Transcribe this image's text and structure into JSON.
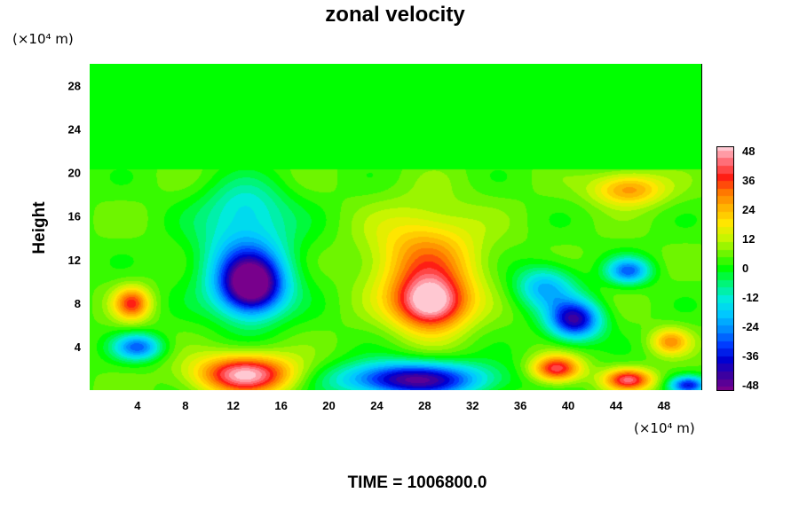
{
  "chart_data": {
    "type": "heatmap",
    "title": "zonal velocity",
    "ylabel": "Height",
    "xlabel": "",
    "y_unit_label": "(×10⁴ m)",
    "x_unit_label": "(×10⁴ m)",
    "xlim": [
      0,
      51.2
    ],
    "ylim": [
      0,
      30
    ],
    "x_ticks": [
      4,
      8,
      12,
      16,
      20,
      24,
      28,
      32,
      36,
      40,
      44,
      48
    ],
    "y_ticks": [
      4,
      8,
      12,
      16,
      20,
      24,
      28
    ],
    "colorbar": {
      "min": -48,
      "max": 48,
      "ticks": [
        48,
        36,
        24,
        12,
        0,
        -12,
        -24,
        -36,
        -48
      ]
    },
    "background_value": 0,
    "features": [
      {
        "name": "upper-left negative",
        "x": 13.5,
        "y": 9.5,
        "value": -48
      },
      {
        "name": "upper-left negative halo",
        "x": 13,
        "y": 12,
        "value": -24
      },
      {
        "name": "mid-upper negative band",
        "x": 13,
        "y": 17,
        "value": -12
      },
      {
        "name": "central positive",
        "x": 28.5,
        "y": 8,
        "value": 42
      },
      {
        "name": "central positive halo",
        "x": 28,
        "y": 12,
        "value": 24
      },
      {
        "name": "right negative",
        "x": 40.5,
        "y": 6.5,
        "value": -44
      },
      {
        "name": "right negative upper",
        "x": 38,
        "y": 9.5,
        "value": -24
      },
      {
        "name": "far right negative",
        "x": 45,
        "y": 11,
        "value": -30
      },
      {
        "name": "top right positive",
        "x": 45,
        "y": 18.5,
        "value": 24
      },
      {
        "name": "left edge positive",
        "x": 3.5,
        "y": 8,
        "value": 30
      },
      {
        "name": "left lower negative",
        "x": 4,
        "y": 4,
        "value": -30
      },
      {
        "name": "bottom left positive",
        "x": 13,
        "y": 1.5,
        "value": 44
      },
      {
        "name": "bottom center negative",
        "x": 27,
        "y": 1,
        "value": -48
      },
      {
        "name": "bottom right positive",
        "x": 39,
        "y": 2,
        "value": 36
      },
      {
        "name": "bottom far right positive",
        "x": 45,
        "y": 1,
        "value": 36
      },
      {
        "name": "right edge positive",
        "x": 48.5,
        "y": 4.5,
        "value": 22
      },
      {
        "name": "bottom far right negative",
        "x": 50,
        "y": 0.5,
        "value": -36
      }
    ]
  },
  "footer": {
    "time_text": "TIME = 1006800.0"
  }
}
